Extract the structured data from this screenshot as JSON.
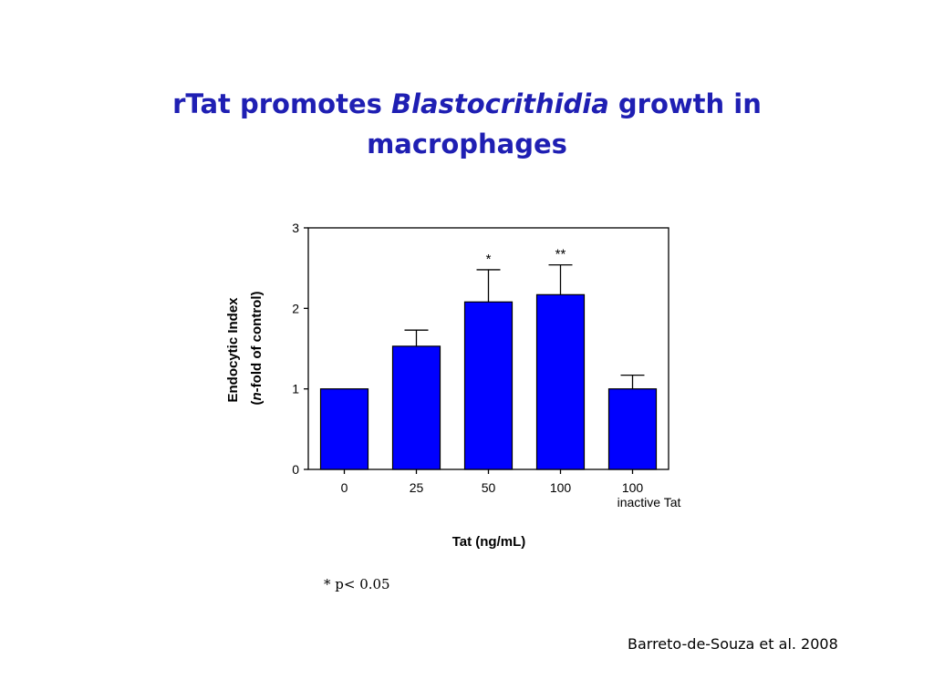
{
  "slide": {
    "title_part1": "rTat promotes ",
    "title_italic": "Blastocrithidia",
    "title_part2": " growth in",
    "title_line2": "macrophages",
    "footnote": "* p< 0.05",
    "citation": "Barreto-de-Souza et al. 2008"
  },
  "colors": {
    "title": "#1f1fb3",
    "bar": "#0000ff"
  },
  "chart_data": {
    "type": "bar",
    "title": "",
    "xlabel": "Tat (ng/mL)",
    "ylabel_line1": "Endocytic Index",
    "ylabel_line2_italic": "n",
    "ylabel_line2_rest": "-fold of control)",
    "ylim": [
      0,
      3
    ],
    "yticks": [
      "0",
      "1",
      "2",
      "3"
    ],
    "categories": [
      "0",
      "25",
      "50",
      "100",
      "100"
    ],
    "category_sublabels": [
      "",
      "",
      "",
      "",
      "inactive Tat"
    ],
    "values": [
      1.0,
      1.53,
      2.08,
      2.17,
      1.0
    ],
    "errors": [
      0,
      0.2,
      0.4,
      0.37,
      0.17
    ],
    "significance": [
      "",
      "",
      "*",
      "**",
      ""
    ],
    "grid": false,
    "legend": "none"
  }
}
